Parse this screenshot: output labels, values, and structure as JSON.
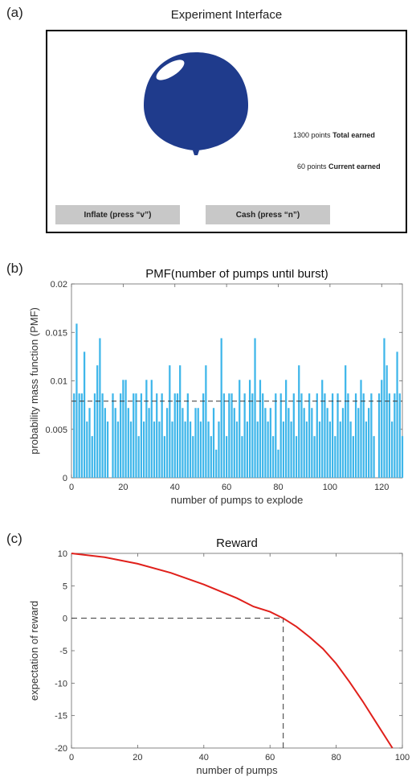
{
  "panels": {
    "a": {
      "letter": "(a)",
      "title": "Experiment Interface",
      "inflate_label": "Inflate (press “v”)",
      "cash_label": "Cash (press “n”)",
      "total_value": "1300 points",
      "total_label": "Total earned",
      "current_value": "60 points",
      "current_label": "Current earned",
      "balloon_color": "#1f3b8c"
    },
    "b": {
      "letter": "(b)"
    },
    "c": {
      "letter": "(c)"
    }
  },
  "chart_data": [
    {
      "type": "bar",
      "title": "PMF(number of pumps until burst)",
      "xlabel": "number of pumps to explode",
      "ylabel": "probability mass function (PMF)",
      "xlim": [
        0,
        128
      ],
      "ylim": [
        0,
        0.02
      ],
      "xticks": [
        0,
        20,
        40,
        60,
        80,
        100,
        120
      ],
      "yticks": [
        0,
        0.005,
        0.01,
        0.015,
        0.02
      ],
      "ytick_labels": [
        "0",
        "0.005",
        "0.01",
        "0.015",
        "0.02"
      ],
      "bar_color": "#3eb6ea",
      "reference_line": {
        "y": 0.0079,
        "style": "dashed"
      },
      "x": [
        1,
        2,
        3,
        4,
        5,
        6,
        7,
        8,
        9,
        10,
        11,
        12,
        13,
        14,
        15,
        16,
        17,
        18,
        19,
        20,
        21,
        22,
        23,
        24,
        25,
        26,
        27,
        28,
        29,
        30,
        31,
        32,
        33,
        34,
        35,
        36,
        37,
        38,
        39,
        40,
        41,
        42,
        43,
        44,
        45,
        46,
        47,
        48,
        49,
        50,
        51,
        52,
        53,
        54,
        55,
        56,
        57,
        58,
        59,
        60,
        61,
        62,
        63,
        64,
        65,
        66,
        67,
        68,
        69,
        70,
        71,
        72,
        73,
        74,
        75,
        76,
        77,
        78,
        79,
        80,
        81,
        82,
        83,
        84,
        85,
        86,
        87,
        88,
        89,
        90,
        91,
        92,
        93,
        94,
        95,
        96,
        97,
        98,
        99,
        100,
        101,
        102,
        103,
        104,
        105,
        106,
        107,
        108,
        109,
        110,
        111,
        112,
        113,
        114,
        115,
        116,
        117,
        118,
        119,
        120,
        121,
        122,
        123,
        124,
        125,
        126,
        127,
        128
      ],
      "values": [
        0.0087,
        0.0159,
        0.0087,
        0.0087,
        0.013,
        0.0058,
        0.0072,
        0.0043,
        0.0087,
        0.0116,
        0.0144,
        0.0087,
        0.0072,
        0.0058,
        0.0,
        0.0087,
        0.0072,
        0.0058,
        0.0087,
        0.0101,
        0.0101,
        0.0072,
        0.0058,
        0.0087,
        0.0087,
        0.0043,
        0.0087,
        0.0058,
        0.0101,
        0.0072,
        0.0101,
        0.0058,
        0.0087,
        0.0058,
        0.0087,
        0.0043,
        0.0072,
        0.0116,
        0.0058,
        0.0087,
        0.0087,
        0.0116,
        0.0072,
        0.0058,
        0.0087,
        0.0058,
        0.0043,
        0.0072,
        0.0072,
        0.0058,
        0.0087,
        0.0116,
        0.0058,
        0.0043,
        0.0072,
        0.0029,
        0.0058,
        0.0144,
        0.0087,
        0.0043,
        0.0087,
        0.0087,
        0.0072,
        0.0058,
        0.0101,
        0.0043,
        0.0087,
        0.0058,
        0.0101,
        0.0087,
        0.0144,
        0.0058,
        0.0101,
        0.0087,
        0.0072,
        0.0058,
        0.0072,
        0.0043,
        0.0087,
        0.0029,
        0.0087,
        0.0058,
        0.0101,
        0.0072,
        0.0058,
        0.0087,
        0.0043,
        0.0116,
        0.0087,
        0.0072,
        0.0058,
        0.0087,
        0.0072,
        0.0043,
        0.0087,
        0.0058,
        0.0101,
        0.0087,
        0.0072,
        0.0058,
        0.0087,
        0.0043,
        0.0087,
        0.0058,
        0.0072,
        0.0116,
        0.0087,
        0.0058,
        0.0043,
        0.0087,
        0.0072,
        0.0101,
        0.0087,
        0.0058,
        0.0072,
        0.0087,
        0.0043,
        0.0,
        0.0087,
        0.0101,
        0.0144,
        0.0116,
        0.0087,
        0.0058,
        0.0087,
        0.013,
        0.0087,
        0.0043
      ]
    },
    {
      "type": "line",
      "title": "Reward",
      "xlabel": "number of pumps",
      "ylabel": "expectation of reward",
      "xlim": [
        0,
        100
      ],
      "ylim": [
        -20,
        10
      ],
      "xticks": [
        0,
        20,
        40,
        60,
        80,
        100
      ],
      "yticks": [
        -20,
        -15,
        -10,
        -5,
        0,
        5,
        10
      ],
      "line_color": "#e0201b",
      "x": [
        0,
        10,
        20,
        30,
        40,
        50,
        55,
        60,
        64,
        68,
        72,
        76,
        80,
        84,
        88,
        92,
        97
      ],
      "values": [
        10,
        9.4,
        8.4,
        7.0,
        5.2,
        3.1,
        1.8,
        1.0,
        0.0,
        -1.3,
        -2.9,
        -4.7,
        -7.0,
        -9.8,
        -12.8,
        -16.0,
        -20.0
      ],
      "reference_lines": [
        {
          "y": 0,
          "x_range": [
            0,
            64
          ],
          "style": "dashed"
        },
        {
          "x": 64,
          "y_range": [
            -20,
            0
          ],
          "style": "dashed"
        }
      ]
    }
  ]
}
